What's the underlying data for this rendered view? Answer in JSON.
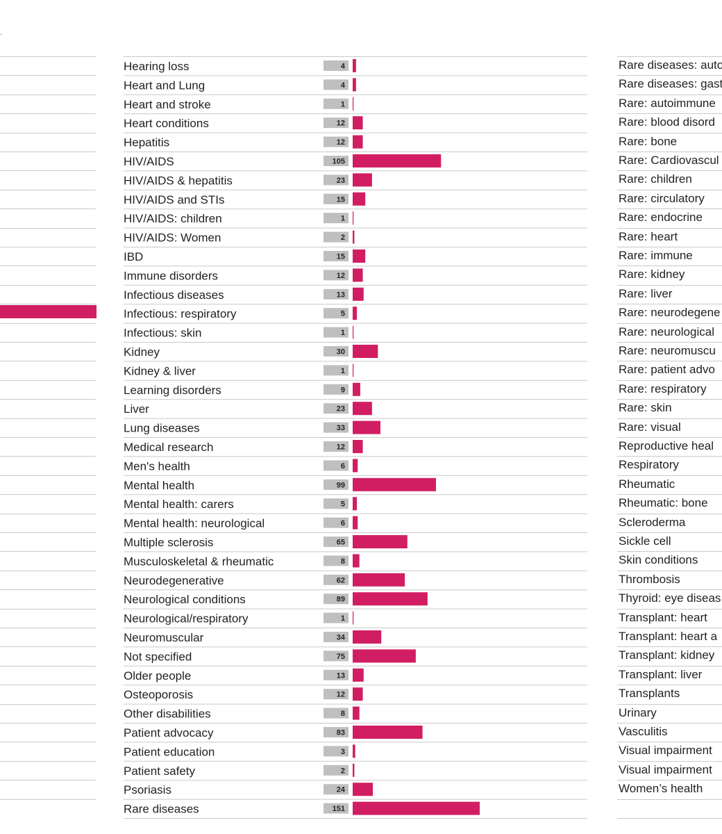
{
  "colors": {
    "bar": "#d11e62",
    "value_box": "#bfbfbf",
    "rule": "#c9c9c9"
  },
  "left_column": {
    "tick": ".",
    "rows": 39,
    "highlight_row_index": 13
  },
  "chart_data": {
    "type": "bar",
    "orientation": "horizontal",
    "title": "",
    "xlabel": "",
    "ylabel": "",
    "categories": [
      "Hearing loss",
      "Heart and Lung",
      "Heart and stroke",
      "Heart conditions",
      "Hepatitis",
      "HIV/AIDS",
      "HIV/AIDS & hepatitis",
      "HIV/AIDS and STIs",
      "HIV/AIDS: children",
      "HIV/AIDS: Women",
      "IBD",
      "Immune disorders",
      "Infectious diseases",
      "Infectious: respiratory",
      "Infectious: skin",
      "Kidney",
      "Kidney & liver",
      "Learning disorders",
      "Liver",
      "Lung diseases",
      "Medical research",
      "Men's health",
      "Mental health",
      "Mental health: carers",
      "Mental health: neurological",
      "Multiple sclerosis",
      "Musculoskeletal & rheumatic",
      "Neurodegenerative",
      "Neurological conditions",
      "Neurological/respiratory",
      "Neuromuscular",
      "Not specified",
      "Older people",
      "Osteoporosis",
      "Other disabilities",
      "Patient advocacy",
      "Patient education",
      "Patient safety",
      "Psoriasis",
      "Rare diseases"
    ],
    "values": [
      4,
      4,
      1,
      12,
      12,
      105,
      23,
      15,
      1,
      2,
      15,
      12,
      13,
      5,
      1,
      30,
      1,
      9,
      23,
      33,
      12,
      6,
      99,
      5,
      6,
      65,
      8,
      62,
      89,
      1,
      34,
      75,
      13,
      12,
      8,
      83,
      3,
      2,
      24,
      151
    ],
    "xlim": [
      0,
      160
    ]
  },
  "right_column": {
    "labels": [
      "Rare diseases: auto",
      "Rare diseases: gast",
      "Rare: autoimmune",
      "Rare: blood disord",
      "Rare: bone",
      "Rare: Cardiovascul",
      "Rare: children",
      "Rare: circulatory",
      "Rare: endocrine",
      "Rare: heart",
      "Rare: immune",
      "Rare: kidney",
      "Rare: liver",
      "Rare: neurodegene",
      "Rare: neurological",
      "Rare: neuromuscu",
      "Rare: patient advo",
      "Rare: respiratory",
      "Rare: skin",
      "Rare: visual",
      "Reproductive heal",
      "Respiratory",
      "Rheumatic",
      "Rheumatic: bone",
      "Scleroderma",
      "Sickle cell",
      "Skin conditions",
      "Thrombosis",
      "Thyroid: eye diseas",
      "Transplant: heart",
      "Transplant: heart a",
      "Transplant: kidney",
      "Transplant: liver",
      "Transplants",
      "Urinary",
      "Vasculitis",
      "Visual impairment",
      "Visual impairment",
      "Women’s health"
    ]
  }
}
